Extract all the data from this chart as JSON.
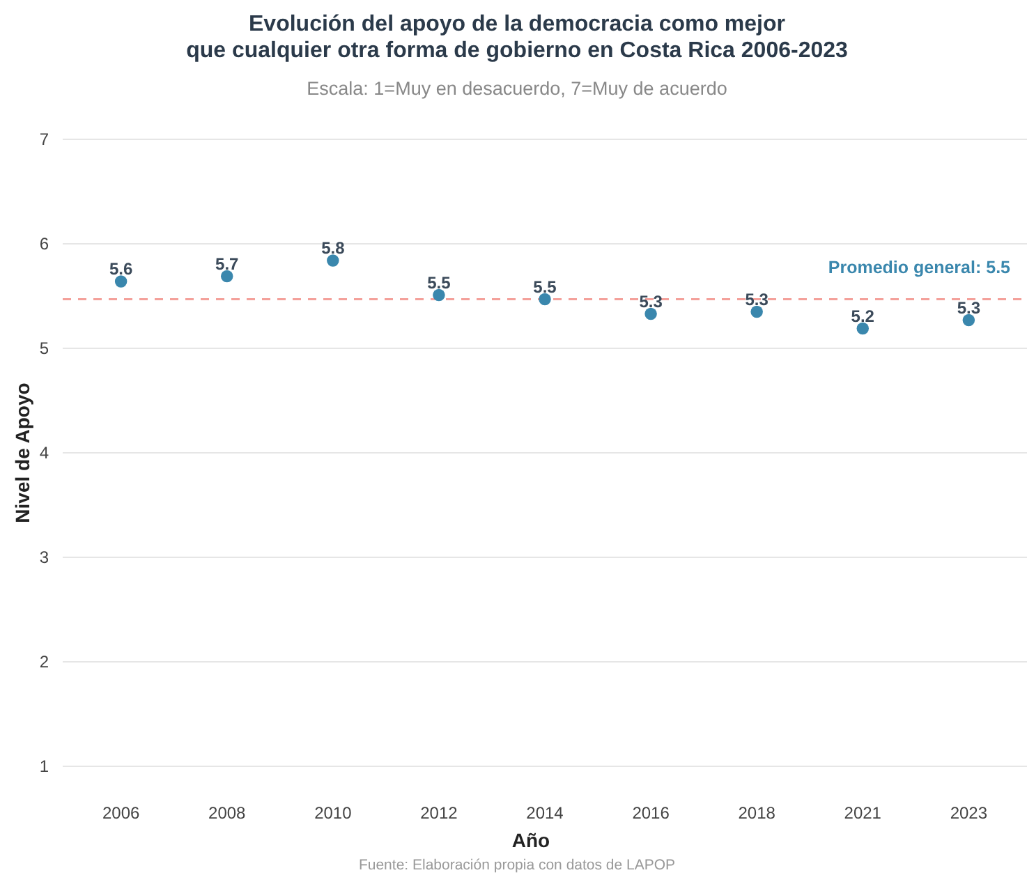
{
  "chart_data": {
    "type": "scatter",
    "title": "Evolución del apoyo de la democracia como mejor\nque cualquier otra forma de gobierno en Costa Rica 2006-2023",
    "subtitle": "Escala: 1=Muy en desacuerdo, 7=Muy de acuerdo",
    "xlabel": "Año",
    "ylabel": "Nivel de Apoyo",
    "categories": [
      "2006",
      "2008",
      "2010",
      "2012",
      "2014",
      "2016",
      "2018",
      "2021",
      "2023"
    ],
    "series": [
      {
        "color": "#3a87ad",
        "values": [
          5.64,
          5.69,
          5.84,
          5.51,
          5.47,
          5.33,
          5.35,
          5.19,
          5.27
        ],
        "value_labels": [
          "5.6",
          "5.7",
          "5.8",
          "5.5",
          "5.5",
          "5.3",
          "5.3",
          "5.2",
          "5.3"
        ]
      }
    ],
    "ylim": [
      1,
      7
    ],
    "yticks": [
      1,
      2,
      3,
      4,
      5,
      6,
      7
    ],
    "grid": "y",
    "marker": "circle",
    "ref_lines": [
      {
        "axis": "y",
        "value": 5.47,
        "label": "Promedio general: 5.5",
        "color": "#f4a09a",
        "line_style": "dashed"
      }
    ],
    "annotations": [
      "Fuente: Elaboración propia con datos de LAPOP"
    ]
  }
}
